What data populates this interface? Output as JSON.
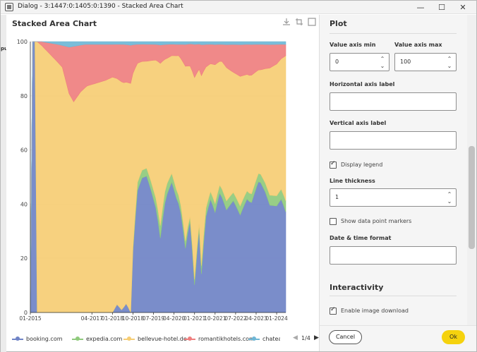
{
  "window": {
    "title": "Dialog - 3:1447:0:1405:0:1390 - Stacked Area Chart",
    "min_glyph": "—",
    "max_glyph": "☐",
    "close_glyph": "✕"
  },
  "background": {
    "fragment": "put"
  },
  "chart": {
    "title": "Stacked Area Chart",
    "tool_icons": [
      "download-icon",
      "crop-icon",
      "expand-icon"
    ]
  },
  "chart_data": {
    "type": "area",
    "stacked": true,
    "title": "Stacked Area Chart",
    "xlabel": "",
    "ylabel": "",
    "ylim": [
      0,
      100
    ],
    "y_ticks": [
      0,
      20,
      40,
      60,
      80,
      100
    ],
    "x_ticks": [
      "01-2015",
      "04-2017",
      "01-2018",
      "10-2018",
      "07-2019",
      "04-2020",
      "01-2021",
      "10-2021",
      "07-2022",
      "04-2023",
      "01-2024"
    ],
    "x_start": "2015-01",
    "x_end": "2024-05",
    "grid": true,
    "legend": "bottom",
    "series": [
      {
        "name": "booking.com",
        "color": "#6f83c6",
        "points": [
          [
            "2015-01",
            0
          ],
          [
            "2015-03",
            100
          ],
          [
            "2015-04",
            0
          ],
          [
            "2016-12",
            0
          ],
          [
            "2017-06",
            0
          ],
          [
            "2018-01",
            0
          ],
          [
            "2018-03",
            3
          ],
          [
            "2018-05",
            1
          ],
          [
            "2018-07",
            3
          ],
          [
            "2018-09",
            0
          ],
          [
            "2018-10",
            20
          ],
          [
            "2018-12",
            45
          ],
          [
            "2019-02",
            52
          ],
          [
            "2019-04",
            51
          ],
          [
            "2019-06",
            45
          ],
          [
            "2019-08",
            38
          ],
          [
            "2019-10",
            22
          ],
          [
            "2019-12",
            38
          ],
          [
            "2020-03",
            52
          ],
          [
            "2020-05",
            42
          ],
          [
            "2020-07",
            36
          ],
          [
            "2020-09",
            22
          ],
          [
            "2020-11",
            40
          ],
          [
            "2021-01",
            10
          ],
          [
            "2021-03",
            34
          ],
          [
            "2021-04",
            12
          ],
          [
            "2021-06",
            34
          ],
          [
            "2021-08",
            43
          ],
          [
            "2021-10",
            34
          ],
          [
            "2021-12",
            44
          ],
          [
            "2022-03",
            34
          ],
          [
            "2022-06",
            40
          ],
          [
            "2022-09",
            32
          ],
          [
            "2022-12",
            41
          ],
          [
            "2023-02",
            38
          ],
          [
            "2023-05",
            48
          ],
          [
            "2023-08",
            42
          ],
          [
            "2023-10",
            36
          ],
          [
            "2024-01",
            38
          ],
          [
            "2024-03",
            43
          ],
          [
            "2024-05",
            36
          ]
        ]
      },
      {
        "name": "expedia.com",
        "color": "#8fca7c",
        "points": [
          [
            "2015-01",
            0
          ],
          [
            "2015-04",
            0
          ],
          [
            "2018-01",
            0
          ],
          [
            "2018-09",
            0
          ],
          [
            "2018-12",
            3
          ],
          [
            "2019-04",
            3
          ],
          [
            "2019-12",
            4
          ],
          [
            "2020-06",
            3
          ],
          [
            "2021-01",
            2
          ],
          [
            "2021-06",
            3
          ],
          [
            "2022-06",
            3
          ],
          [
            "2023-06",
            3
          ],
          [
            "2024-05",
            4
          ]
        ]
      },
      {
        "name": "bellevue-hotel.de",
        "color": "#f6cd74",
        "points": [
          [
            "2015-01",
            0
          ],
          [
            "2015-03",
            0
          ],
          [
            "2015-04",
            100
          ],
          [
            "2016-03",
            90
          ],
          [
            "2016-06",
            80
          ],
          [
            "2016-08",
            76
          ],
          [
            "2016-11",
            80
          ],
          [
            "2017-02",
            82
          ],
          [
            "2017-06",
            83
          ],
          [
            "2017-10",
            84
          ],
          [
            "2018-01",
            86
          ],
          [
            "2018-06",
            82
          ],
          [
            "2018-12",
            44
          ],
          [
            "2019-04",
            40
          ],
          [
            "2019-08",
            50
          ],
          [
            "2020-01",
            45
          ],
          [
            "2020-06",
            50
          ],
          [
            "2021-01",
            73
          ],
          [
            "2021-06",
            50
          ],
          [
            "2022-01",
            45
          ],
          [
            "2022-06",
            43
          ],
          [
            "2023-01",
            42
          ],
          [
            "2023-06",
            37
          ],
          [
            "2024-01",
            47
          ],
          [
            "2024-05",
            52
          ]
        ]
      },
      {
        "name": "romantikhotels.com",
        "color": "#ef7f7f",
        "points": [
          [
            "2015-01",
            0
          ],
          [
            "2015-04",
            0
          ],
          [
            "2016-03",
            8
          ],
          [
            "2016-06",
            17
          ],
          [
            "2016-08",
            20
          ],
          [
            "2016-11",
            17
          ],
          [
            "2017-02",
            15
          ],
          [
            "2017-06",
            14
          ],
          [
            "2017-10",
            13
          ],
          [
            "2018-01",
            12
          ],
          [
            "2018-06",
            14
          ],
          [
            "2018-12",
            7
          ],
          [
            "2019-06",
            6
          ],
          [
            "2020-01",
            5
          ],
          [
            "2020-06",
            4
          ],
          [
            "2021-01",
            12
          ],
          [
            "2021-06",
            8
          ],
          [
            "2022-01",
            6
          ],
          [
            "2022-06",
            10
          ],
          [
            "2023-01",
            11
          ],
          [
            "2023-06",
            9
          ],
          [
            "2024-01",
            7
          ],
          [
            "2024-05",
            4
          ]
        ]
      },
      {
        "name": "chateauhc",
        "color": "#6fb7d6",
        "points": [
          [
            "2015-01",
            0
          ],
          [
            "2015-06",
            0
          ],
          [
            "2016-01",
            1
          ],
          [
            "2016-06",
            2
          ],
          [
            "2017-01",
            1
          ],
          [
            "2018-01",
            1
          ],
          [
            "2019-01",
            1
          ],
          [
            "2020-01",
            1
          ],
          [
            "2021-01",
            1
          ],
          [
            "2022-01",
            1
          ],
          [
            "2023-01",
            1
          ],
          [
            "2024-05",
            1
          ]
        ]
      }
    ]
  },
  "legend": {
    "items": [
      {
        "label": "booking.com",
        "color": "#6f83c6"
      },
      {
        "label": "expedia.com",
        "color": "#8fca7c"
      },
      {
        "label": "bellevue-hotel.de",
        "color": "#f6cd74"
      },
      {
        "label": "romantikhotels.com",
        "color": "#ef7f7f"
      },
      {
        "label": "chateauhc",
        "color": "#6fb7d6"
      }
    ],
    "page": "1/4",
    "prev_glyph": "◀",
    "next_glyph": "▶"
  },
  "panel": {
    "plot_heading": "Plot",
    "value_axis_min_label": "Value axis min",
    "value_axis_min": "0",
    "value_axis_max_label": "Value axis max",
    "value_axis_max": "100",
    "h_axis_label": "Horizontal axis label",
    "h_axis_value": "",
    "v_axis_label": "Vertical axis label",
    "v_axis_value": "",
    "display_legend_label": "Display legend",
    "display_legend": true,
    "line_thickness_label": "Line thickness",
    "line_thickness": "1",
    "show_markers_label": "Show data point markers",
    "show_markers": false,
    "datetime_format_label": "Date & time format",
    "datetime_format_value": "",
    "interactivity_heading": "Interactivity",
    "image_download_label": "Enable image download",
    "image_download": true,
    "spin_up": "⌃",
    "spin_down": "⌄"
  },
  "footer": {
    "cancel_label": "Cancel",
    "ok_label": "Ok"
  }
}
